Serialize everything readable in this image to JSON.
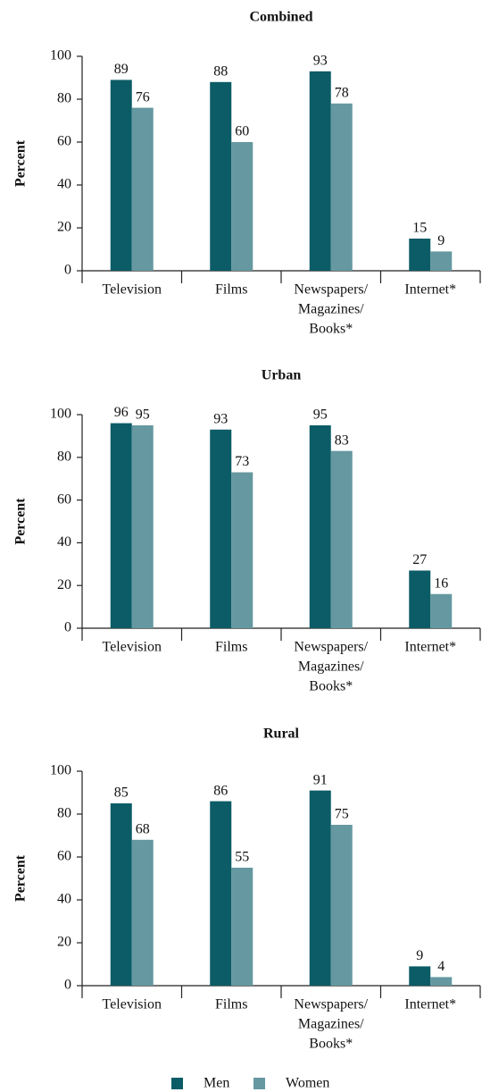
{
  "legend": [
    {
      "name": "Men",
      "color": "#0b5c66"
    },
    {
      "name": "Women",
      "color": "#6598a0"
    }
  ],
  "chart_data": [
    {
      "type": "bar",
      "title": "Combined",
      "ylabel": "Percent",
      "categories": [
        [
          "Television"
        ],
        [
          "Films"
        ],
        [
          "Newspapers/",
          "Magazines/",
          "Books*"
        ],
        [
          "Internet*"
        ]
      ],
      "series": [
        {
          "values": [
            89,
            88,
            93,
            15
          ]
        },
        {
          "values": [
            76,
            60,
            78,
            9
          ]
        }
      ],
      "ylim": [
        0,
        100
      ],
      "yticks": [
        0,
        20,
        40,
        60,
        80,
        100
      ]
    },
    {
      "type": "bar",
      "title": "Urban",
      "ylabel": "Percent",
      "categories": [
        [
          "Television"
        ],
        [
          "Films"
        ],
        [
          "Newspapers/",
          "Magazines/",
          "Books*"
        ],
        [
          "Internet*"
        ]
      ],
      "series": [
        {
          "values": [
            96,
            93,
            95,
            27
          ]
        },
        {
          "values": [
            95,
            73,
            83,
            16
          ]
        }
      ],
      "ylim": [
        0,
        100
      ],
      "yticks": [
        0,
        20,
        40,
        60,
        80,
        100
      ]
    },
    {
      "type": "bar",
      "title": "Rural",
      "ylabel": "Percent",
      "categories": [
        [
          "Television"
        ],
        [
          "Films"
        ],
        [
          "Newspapers/",
          "Magazines/",
          "Books*"
        ],
        [
          "Internet*"
        ]
      ],
      "series": [
        {
          "values": [
            85,
            86,
            91,
            9
          ]
        },
        {
          "values": [
            68,
            55,
            75,
            4
          ]
        }
      ],
      "ylim": [
        0,
        100
      ],
      "yticks": [
        0,
        20,
        40,
        60,
        80,
        100
      ]
    }
  ]
}
